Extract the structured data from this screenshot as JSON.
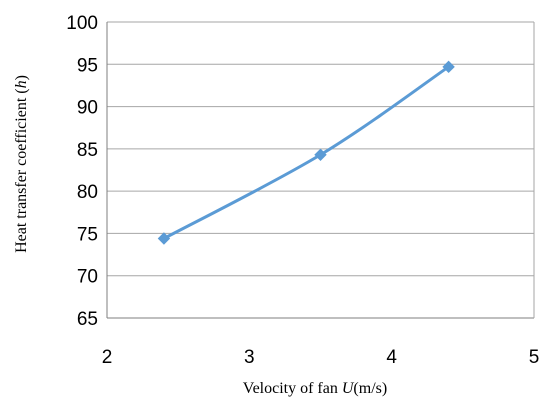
{
  "chart_data": {
    "type": "line",
    "title": "",
    "xlabel": "Velocity of fan U(m/s)",
    "xlabel_parts": {
      "prefix": "Velocity of fan ",
      "var": "U",
      "suffix": "(m/s)"
    },
    "ylabel": "Heat transfer coefficient (h)",
    "ylabel_parts": {
      "prefix": "Heat transfer coefficient (",
      "var": "h",
      "suffix": ")"
    },
    "xlim": [
      2,
      5
    ],
    "ylim": [
      65,
      100
    ],
    "xticks": [
      2,
      3,
      4,
      5
    ],
    "yticks": [
      65,
      70,
      75,
      80,
      85,
      90,
      95,
      100
    ],
    "grid": "horizontal",
    "legend": "none",
    "series": [
      {
        "marker": "diamond",
        "color": "#5b9bd5",
        "smooth": true,
        "points": [
          {
            "x": 2.4,
            "y": 74.4
          },
          {
            "x": 3.5,
            "y": 84.3
          },
          {
            "x": 4.4,
            "y": 94.7
          }
        ]
      }
    ]
  }
}
